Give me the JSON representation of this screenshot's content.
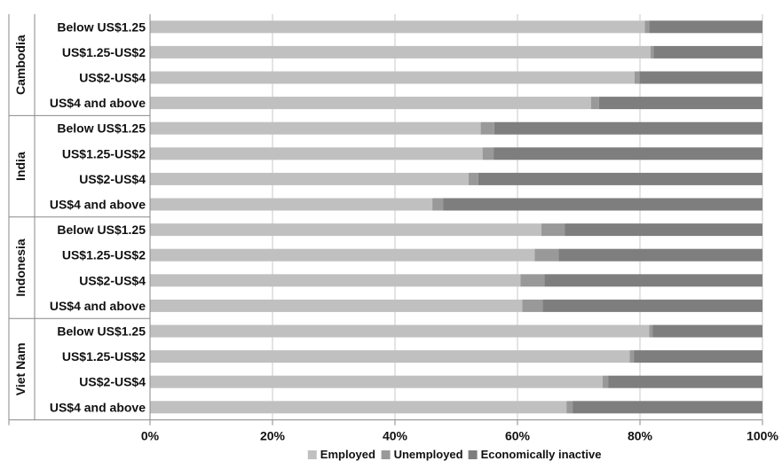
{
  "chart_data": {
    "type": "bar",
    "orientation": "horizontal",
    "stacked": true,
    "percent": true,
    "grid": true,
    "legend_position": "bottom",
    "xlim": [
      0,
      100
    ],
    "x_ticks": [
      "0%",
      "20%",
      "40%",
      "60%",
      "80%",
      "100%"
    ],
    "groups": [
      {
        "name": "Cambodia",
        "categories": [
          "Below US$1.25",
          "US$1.25-US$2",
          "US$2-US$4",
          "US$4 and above"
        ]
      },
      {
        "name": "India",
        "categories": [
          "Below US$1.25",
          "US$1.25-US$2",
          "US$2-US$4",
          "US$4 and above"
        ]
      },
      {
        "name": "Indonesia",
        "categories": [
          "Below US$1.25",
          "US$1.25-US$2",
          "US$2-US$4",
          "US$4 and above"
        ]
      },
      {
        "name": "Viet Nam",
        "categories": [
          "Below US$1.25",
          "US$1.25-US$2",
          "US$2-US$4",
          "US$4 and above"
        ]
      }
    ],
    "series": [
      {
        "name": "Employed",
        "color": "#c0c0c0",
        "values": [
          80.8,
          81.7,
          79.1,
          72.0,
          54.0,
          54.3,
          52.0,
          46.1,
          63.9,
          62.8,
          60.5,
          60.8,
          81.5,
          78.3,
          73.9,
          68.0
        ]
      },
      {
        "name": "Unemployed",
        "color": "#999999",
        "values": [
          0.7,
          0.5,
          0.8,
          1.3,
          2.2,
          1.8,
          1.6,
          1.8,
          3.8,
          3.9,
          3.9,
          3.3,
          0.6,
          0.7,
          0.9,
          1.0
        ]
      },
      {
        "name": "Economically inactive",
        "color": "#7e7e7e",
        "values": [
          18.5,
          17.8,
          20.1,
          26.7,
          43.8,
          43.9,
          46.4,
          52.1,
          32.3,
          33.3,
          35.6,
          35.9,
          17.9,
          21.0,
          25.2,
          31.0
        ]
      }
    ]
  }
}
